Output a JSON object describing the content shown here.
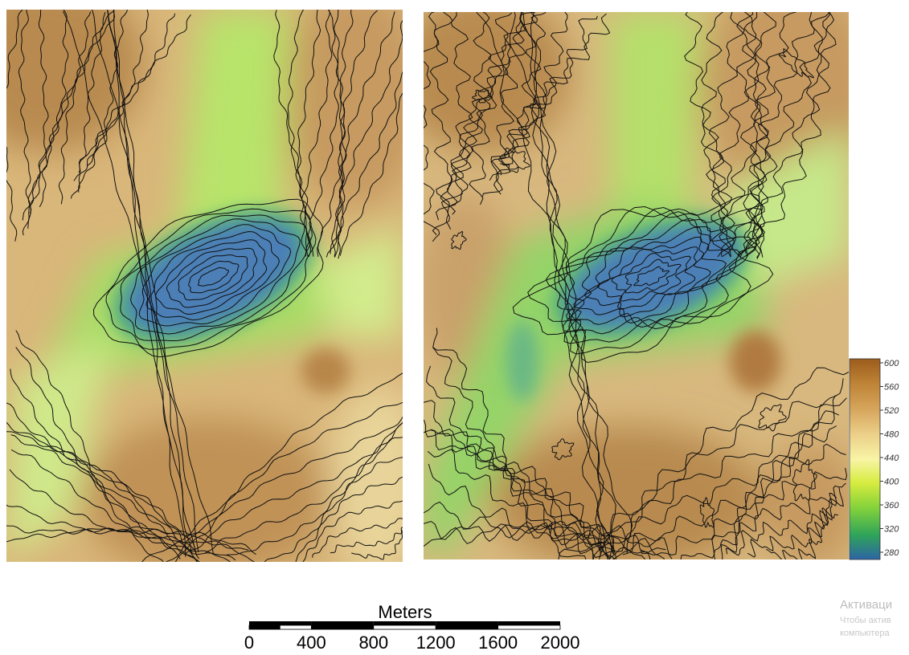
{
  "legend": {
    "ticks": [
      600,
      560,
      520,
      480,
      440,
      400,
      360,
      320,
      280
    ]
  },
  "scale_bar": {
    "title": "Meters",
    "labels": [
      0,
      400,
      800,
      1200,
      1600,
      2000
    ]
  },
  "watermark": {
    "title": "Активаци",
    "lines": [
      "Чтобы актив",
      "компьютера"
    ]
  }
}
